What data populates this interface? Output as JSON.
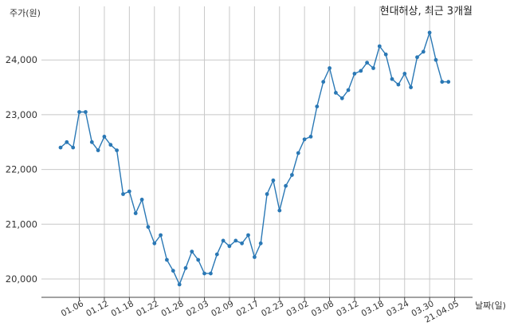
{
  "chart_data": {
    "type": "line",
    "title": "현대해상, 최근 3개월",
    "ylabel": "주가(원)",
    "xlabel": "날짜(일)",
    "ylim": [
      19700,
      24750
    ],
    "yticks": [
      20000,
      21000,
      22000,
      23000,
      24000
    ],
    "ytick_labels": [
      "20,000",
      "21,000",
      "22,000",
      "23,000",
      "24,000"
    ],
    "xtick_labels": [
      "01.06",
      "01.12",
      "01.18",
      "01.22",
      "01.28",
      "02.03",
      "02.09",
      "02.17",
      "02.23",
      "03.02",
      "03.08",
      "03.12",
      "03.18",
      "03.24",
      "03.30",
      "21.04.05"
    ],
    "xtick_indices": [
      3,
      7,
      11,
      15,
      19,
      23,
      27,
      31,
      35,
      39,
      43,
      47,
      51,
      55,
      59,
      63
    ],
    "grid": true,
    "series": [
      {
        "color": "#2a78b5",
        "values": [
          22400,
          22500,
          22400,
          23050,
          23050,
          22500,
          22350,
          22600,
          22450,
          22350,
          21550,
          21600,
          21200,
          21450,
          20950,
          20650,
          20800,
          20350,
          20150,
          19900,
          20200,
          20500,
          20350,
          20100,
          20100,
          20450,
          20700,
          20600,
          20700,
          20650,
          20800,
          20400,
          20650,
          21550,
          21800,
          21250,
          21700,
          21900,
          22300,
          22550,
          22600,
          23150,
          23600,
          23850,
          23400,
          23300,
          23450,
          23750,
          23800,
          23950,
          23850,
          24250,
          24100,
          23650,
          23550,
          23750,
          23500,
          24050,
          24150,
          24500,
          24000,
          23600,
          23600
        ]
      }
    ]
  }
}
